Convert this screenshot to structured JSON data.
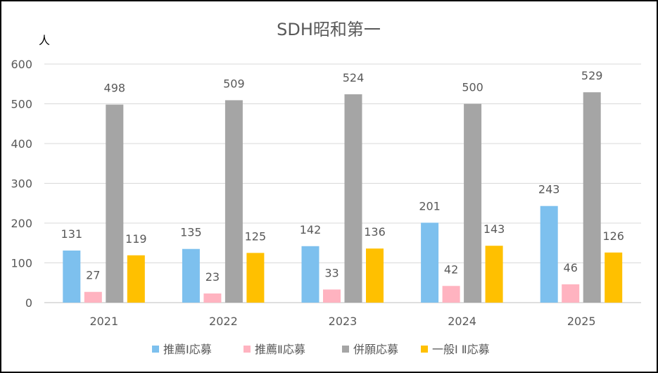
{
  "chart_data": {
    "type": "bar",
    "title": "SDH昭和第一",
    "ylabel": "人",
    "xlabel": "",
    "ylim": [
      0,
      600
    ],
    "yticks": [
      0,
      100,
      200,
      300,
      400,
      500,
      600
    ],
    "grid": true,
    "legend_position": "bottom",
    "categories": [
      "2021",
      "2022",
      "2023",
      "2024",
      "2025"
    ],
    "series": [
      {
        "name": "推薦Ⅰ応募",
        "color": "#7DC0EE",
        "values": [
          131,
          135,
          142,
          201,
          243
        ]
      },
      {
        "name": "推薦Ⅱ応募",
        "color": "#FFB3C0",
        "values": [
          27,
          23,
          33,
          42,
          46
        ]
      },
      {
        "name": "併願応募",
        "color": "#A5A5A5",
        "values": [
          498,
          509,
          524,
          500,
          529
        ]
      },
      {
        "name": "一般Ⅰ Ⅱ応募",
        "color": "#FFC000",
        "values": [
          119,
          125,
          136,
          143,
          126
        ]
      }
    ]
  }
}
